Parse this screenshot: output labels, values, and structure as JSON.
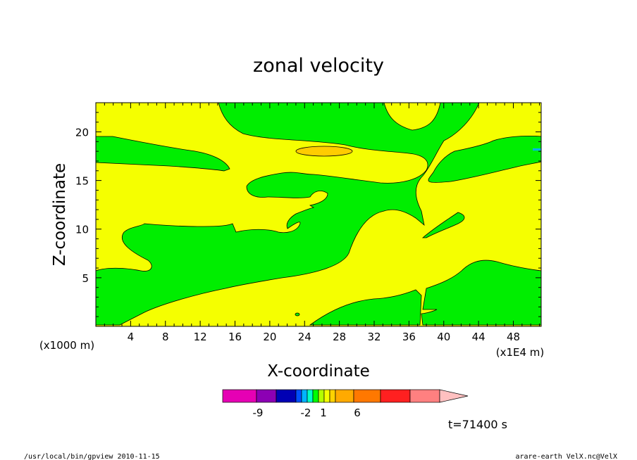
{
  "chart_data": {
    "type": "contour",
    "title": "zonal velocity",
    "xlabel": "X-coordinate",
    "ylabel": "Z-coordinate",
    "x_scale_note": "(x1E4 m)",
    "y_scale_note": "(x1000 m)",
    "xlim": [
      0,
      51.2
    ],
    "ylim": [
      0,
      23
    ],
    "x_ticks": [
      "4",
      "8",
      "12",
      "16",
      "20",
      "24",
      "28",
      "32",
      "36",
      "40",
      "44",
      "48"
    ],
    "y_ticks": [
      "5",
      "10",
      "15",
      "20"
    ],
    "colorbar": {
      "labels": [
        "-9",
        "-2",
        "1",
        "6"
      ],
      "colors": [
        "#e600b4",
        "#8c00b4",
        "#0000b4",
        "#0050ff",
        "#00b4ff",
        "#00ffc8",
        "#00ff00",
        "#b4ff00",
        "#f5ff00",
        "#ffd200",
        "#ffaa00",
        "#ff7800",
        "#ff2020",
        "#ff8080",
        "#ffc0c0"
      ]
    },
    "field_colors": {
      "green": "#00ee00",
      "yellow": "#f5ff00",
      "orange": "#ffcc00"
    }
  },
  "time_label": "t=71400 s",
  "footer": {
    "left": "/usr/local/bin/gpview  2010-11-15",
    "right": "arare-earth_VelX.nc@VelX"
  }
}
